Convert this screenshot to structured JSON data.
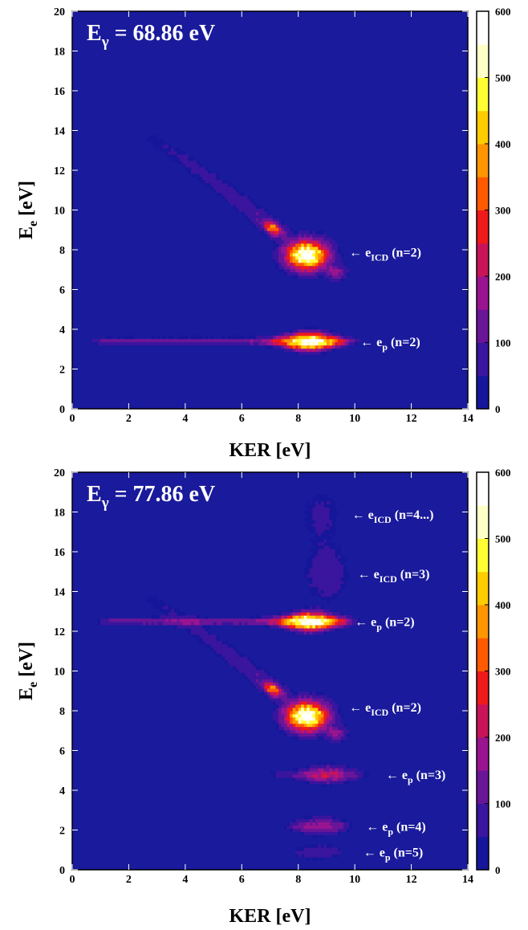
{
  "chart_data": [
    {
      "type": "heatmap",
      "title": "E",
      "title_sub": "γ",
      "title_value": " = 68.86 eV",
      "xlabel": "KER [eV]",
      "ylabel_main": "E",
      "ylabel_sub": "e",
      "ylabel_unit": " [eV]",
      "xlim": [
        0,
        14
      ],
      "ylim": [
        0,
        20
      ],
      "xticks": [
        "0",
        "2",
        "4",
        "6",
        "8",
        "10",
        "12",
        "14"
      ],
      "yticks": [
        "0",
        "2",
        "4",
        "6",
        "8",
        "10",
        "12",
        "14",
        "16",
        "18",
        "20"
      ],
      "colorbar": {
        "min": 0,
        "max": 600,
        "ticks": [
          "0",
          "100",
          "200",
          "300",
          "400",
          "500",
          "600"
        ]
      },
      "features": [
        {
          "kind": "diagonal",
          "points": [
            [
              2.8,
              13.6
            ],
            [
              4.2,
              12.3
            ],
            [
              5.6,
              10.8
            ],
            [
              6.4,
              9.9
            ],
            [
              7.1,
              9.1
            ],
            [
              7.7,
              8.4
            ],
            [
              8.1,
              8.0
            ],
            [
              8.6,
              7.5
            ],
            [
              9.3,
              6.9
            ]
          ],
          "peak": 600
        },
        {
          "kind": "horizontal",
          "y": 3.4,
          "x_start": 0.8,
          "x_end": 10.0,
          "peak_x": 8.4,
          "peak": 600
        }
      ],
      "annotations": [
        {
          "arrow": "←",
          "label": "e",
          "sub": "ICD",
          "tail": " (n=2)",
          "x": 9.8,
          "y": 7.9
        },
        {
          "arrow": "←",
          "label": "e",
          "sub": "p",
          "tail": " (n=2)",
          "x": 10.2,
          "y": 3.4
        }
      ]
    },
    {
      "type": "heatmap",
      "title": "E",
      "title_sub": "γ",
      "title_value": " = 77.86 eV",
      "xlabel": "KER [eV]",
      "ylabel_main": "E",
      "ylabel_sub": "e",
      "ylabel_unit": " [eV]",
      "xlim": [
        0,
        14
      ],
      "ylim": [
        0,
        20
      ],
      "xticks": [
        "0",
        "2",
        "4",
        "6",
        "8",
        "10",
        "12",
        "14"
      ],
      "yticks": [
        "0",
        "2",
        "4",
        "6",
        "8",
        "10",
        "12",
        "14",
        "16",
        "18",
        "20"
      ],
      "colorbar": {
        "min": 0,
        "max": 600,
        "ticks": [
          "0",
          "100",
          "200",
          "300",
          "400",
          "500",
          "600"
        ]
      },
      "features": [
        {
          "kind": "diagonal",
          "points": [
            [
              2.8,
              13.6
            ],
            [
              4.2,
              12.3
            ],
            [
              5.6,
              10.8
            ],
            [
              6.4,
              9.9
            ],
            [
              7.1,
              9.1
            ],
            [
              7.7,
              8.4
            ],
            [
              8.1,
              8.0
            ],
            [
              8.6,
              7.5
            ],
            [
              9.3,
              6.9
            ]
          ],
          "peak": 600
        },
        {
          "kind": "horizontal",
          "y": 12.5,
          "x_start": 1.0,
          "x_end": 10.0,
          "peak_x": 8.4,
          "peak": 600
        },
        {
          "kind": "cloud",
          "x": 9.0,
          "y": 14.9,
          "peak": 90
        },
        {
          "kind": "cloud",
          "x": 8.8,
          "y": 17.9,
          "peak": 60
        },
        {
          "kind": "horizontal",
          "y": 4.8,
          "x_start": 6.8,
          "x_end": 10.5,
          "peak_x": 9.0,
          "peak": 230
        },
        {
          "kind": "horizontal",
          "y": 2.2,
          "x_start": 7.5,
          "x_end": 9.9,
          "peak_x": 8.8,
          "peak": 180
        },
        {
          "kind": "horizontal",
          "y": 0.9,
          "x_start": 7.6,
          "x_end": 9.8,
          "peak_x": 8.7,
          "peak": 80
        }
      ],
      "annotations": [
        {
          "arrow": "←",
          "label": "e",
          "sub": "ICD",
          "tail": " (n=4...)",
          "x": 9.9,
          "y": 17.9
        },
        {
          "arrow": "←",
          "label": "e",
          "sub": "ICD",
          "tail": " (n=3)",
          "x": 10.1,
          "y": 14.9
        },
        {
          "arrow": "←",
          "label": "e",
          "sub": "p",
          "tail": " (n=2)",
          "x": 10.0,
          "y": 12.5
        },
        {
          "arrow": "←",
          "label": "e",
          "sub": "ICD",
          "tail": " (n=2)",
          "x": 9.8,
          "y": 8.2
        },
        {
          "arrow": "←",
          "label": "e",
          "sub": "p",
          "tail": " (n=3)",
          "x": 11.1,
          "y": 4.8
        },
        {
          "arrow": "←",
          "label": "e",
          "sub": "p",
          "tail": " (n=4)",
          "x": 10.4,
          "y": 2.2
        },
        {
          "arrow": "←",
          "label": "e",
          "sub": "p",
          "tail": " (n=5)",
          "x": 10.3,
          "y": 0.9
        }
      ]
    }
  ],
  "colors": {
    "background": "#1a1a9c",
    "colormap": [
      "#16169a",
      "#3a159d",
      "#6a1597",
      "#9a1490",
      "#c9145a",
      "#ef1a1a",
      "#ff5a00",
      "#ff9500",
      "#ffcc00",
      "#ffff33",
      "#ffffc8",
      "#ffffff"
    ]
  }
}
